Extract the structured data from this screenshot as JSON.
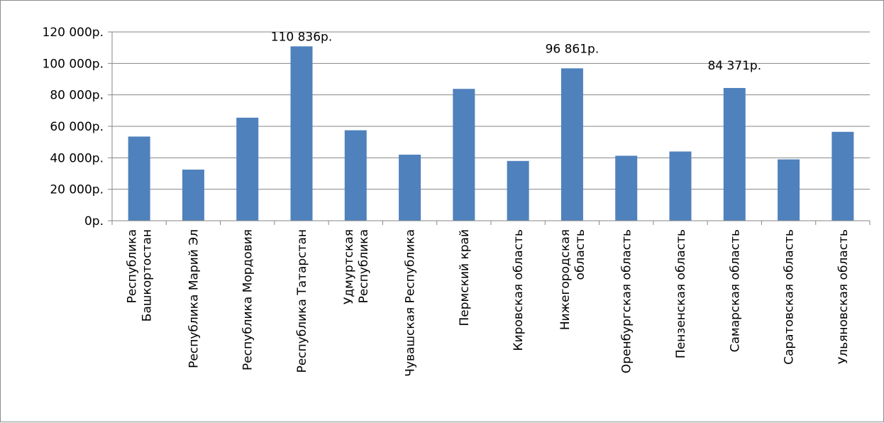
{
  "chart_data": {
    "type": "bar",
    "title": "",
    "xlabel": "",
    "ylabel": "",
    "ylim": [
      0,
      120000
    ],
    "ytick_step": 20000,
    "ytick_labels": [
      "0р.",
      "20 000р.",
      "40 000р.",
      "60 000р.",
      "80 000р.",
      "100 000р.",
      "120 000р."
    ],
    "grid": true,
    "legend": "none",
    "bar_color": "#4f81bd",
    "categories": [
      [
        "Республика",
        "Башкортостан"
      ],
      [
        "Республика Марий Эл"
      ],
      [
        "Республика Мордовия"
      ],
      [
        "Республика Татарстан"
      ],
      [
        "Удмуртская",
        "Республика"
      ],
      [
        "Чувашская Республика"
      ],
      [
        "Пермский край"
      ],
      [
        "Кировская область"
      ],
      [
        "Нижегородская",
        "область"
      ],
      [
        "Оренбургская область"
      ],
      [
        "Пензенская область"
      ],
      [
        "Самарская область"
      ],
      [
        "Саратовская область"
      ],
      [
        "Ульяновская область"
      ]
    ],
    "values": [
      53500,
      32500,
      65500,
      110836,
      57500,
      42000,
      83800,
      38000,
      96861,
      41300,
      44000,
      84371,
      39000,
      56500
    ],
    "data_labels": [
      {
        "index": 3,
        "text": "110 836р."
      },
      {
        "index": 8,
        "text": "96 861р."
      },
      {
        "index": 11,
        "text": "84 371р."
      }
    ]
  }
}
